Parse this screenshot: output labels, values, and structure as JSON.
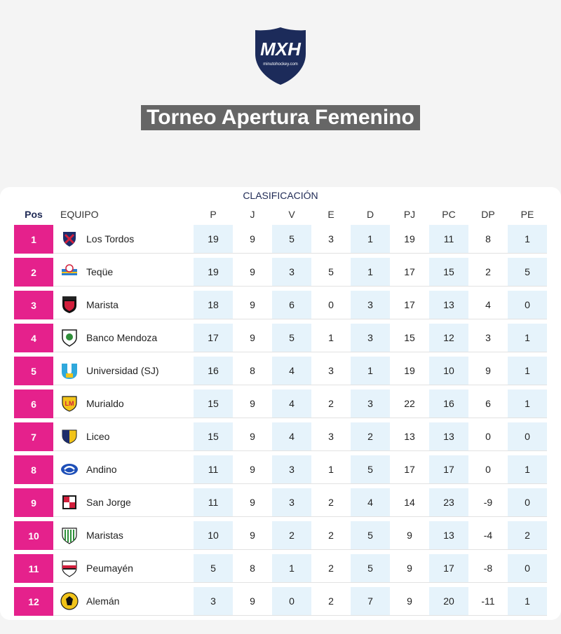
{
  "header": {
    "logo_text": "MXH",
    "logo_subtext": "minutohockey.com",
    "title": "Torneo Apertura Femenino"
  },
  "table": {
    "caption": "CLASIFICACIÓN",
    "columns": [
      "Pos",
      "EQUIPO",
      "P",
      "J",
      "V",
      "E",
      "D",
      "PJ",
      "PC",
      "DP",
      "PE"
    ],
    "rows": [
      {
        "pos": "1",
        "team": "Los Tordos",
        "stats": [
          "19",
          "9",
          "5",
          "3",
          "1",
          "19",
          "11",
          "8",
          "1"
        ],
        "crest": "los-tordos-crest"
      },
      {
        "pos": "2",
        "team": "Teqüe",
        "stats": [
          "19",
          "9",
          "3",
          "5",
          "1",
          "17",
          "15",
          "2",
          "5"
        ],
        "crest": "teque-crest"
      },
      {
        "pos": "3",
        "team": "Marista",
        "stats": [
          "18",
          "9",
          "6",
          "0",
          "3",
          "17",
          "13",
          "4",
          "0"
        ],
        "crest": "marista-crest"
      },
      {
        "pos": "4",
        "team": "Banco Mendoza",
        "stats": [
          "17",
          "9",
          "5",
          "1",
          "3",
          "15",
          "12",
          "3",
          "1"
        ],
        "crest": "banco-mendoza-crest"
      },
      {
        "pos": "5",
        "team": "Universidad (SJ)",
        "stats": [
          "16",
          "8",
          "4",
          "3",
          "1",
          "19",
          "10",
          "9",
          "1"
        ],
        "crest": "universidad-sj-crest"
      },
      {
        "pos": "6",
        "team": "Murialdo",
        "stats": [
          "15",
          "9",
          "4",
          "2",
          "3",
          "22",
          "16",
          "6",
          "1"
        ],
        "crest": "murialdo-crest"
      },
      {
        "pos": "7",
        "team": "Liceo",
        "stats": [
          "15",
          "9",
          "4",
          "3",
          "2",
          "13",
          "13",
          "0",
          "0"
        ],
        "crest": "liceo-crest"
      },
      {
        "pos": "8",
        "team": "Andino",
        "stats": [
          "11",
          "9",
          "3",
          "1",
          "5",
          "17",
          "17",
          "0",
          "1"
        ],
        "crest": "andino-crest"
      },
      {
        "pos": "9",
        "team": "San Jorge",
        "stats": [
          "11",
          "9",
          "3",
          "2",
          "4",
          "14",
          "23",
          "-9",
          "0"
        ],
        "crest": "san-jorge-crest"
      },
      {
        "pos": "10",
        "team": "Maristas",
        "stats": [
          "10",
          "9",
          "2",
          "2",
          "5",
          "9",
          "13",
          "-4",
          "2"
        ],
        "crest": "maristas-crest"
      },
      {
        "pos": "11",
        "team": "Peumayén",
        "stats": [
          "5",
          "8",
          "1",
          "2",
          "5",
          "9",
          "17",
          "-8",
          "0"
        ],
        "crest": "peumayen-crest"
      },
      {
        "pos": "12",
        "team": "Alemán",
        "stats": [
          "3",
          "9",
          "0",
          "2",
          "7",
          "9",
          "20",
          "-11",
          "1"
        ],
        "crest": "aleman-crest"
      }
    ]
  },
  "colors": {
    "pos_badge": "#e5218c",
    "shaded_column": "#e6f3fb",
    "title_bg": "#666666",
    "logo_navy": "#1c2b5a"
  }
}
